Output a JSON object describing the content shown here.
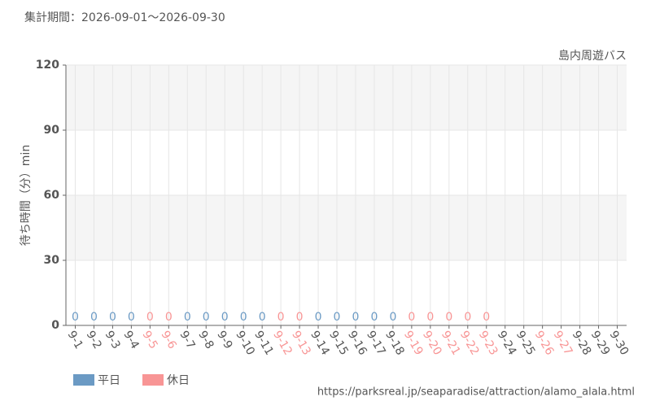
{
  "chart_data": {
    "type": "bar",
    "title": "集計期間：2026-09-01～2026-09-30",
    "subtitle": "島内周遊バス",
    "y_label": "待ち時間（分）min",
    "source": "https://parksreal.jp/seaparadise/attraction/alamo_alala.html",
    "categories": [
      "9-1",
      "9-2",
      "9-3",
      "9-4",
      "9-5",
      "9-6",
      "9-7",
      "9-8",
      "9-9",
      "9-10",
      "9-11",
      "9-12",
      "9-13",
      "9-14",
      "9-15",
      "9-16",
      "9-17",
      "9-18",
      "9-19",
      "9-20",
      "9-21",
      "9-22",
      "9-23",
      "9-24",
      "9-25",
      "9-26",
      "9-27",
      "9-28",
      "9-29",
      "9-30"
    ],
    "category_colors": [
      "#555",
      "#555",
      "#555",
      "#555",
      "#f89595",
      "#f89595",
      "#555",
      "#555",
      "#555",
      "#555",
      "#555",
      "#f89595",
      "#f89595",
      "#555",
      "#555",
      "#555",
      "#555",
      "#555",
      "#f89595",
      "#f89595",
      "#f89595",
      "#f89595",
      "#f89595",
      "#555",
      "#555",
      "#f89595",
      "#f89595",
      "#555",
      "#555",
      "#555"
    ],
    "series": [
      {
        "name": "平日",
        "color": "#6b9ac4",
        "values": [
          0,
          0,
          0,
          0,
          null,
          null,
          0,
          0,
          0,
          0,
          0,
          null,
          null,
          0,
          0,
          0,
          0,
          0,
          null,
          null,
          null,
          null,
          null,
          null,
          null,
          null,
          null,
          null,
          null,
          null
        ]
      },
      {
        "name": "休日",
        "color": "#f89595",
        "values": [
          null,
          null,
          null,
          null,
          0,
          0,
          null,
          null,
          null,
          null,
          null,
          0,
          0,
          null,
          null,
          null,
          null,
          null,
          0,
          0,
          0,
          0,
          0,
          null,
          null,
          null,
          null,
          null,
          null,
          null
        ]
      }
    ],
    "ylim": [
      0,
      120
    ],
    "yticks": [
      0,
      30,
      60,
      90,
      120
    ],
    "grid": true
  }
}
